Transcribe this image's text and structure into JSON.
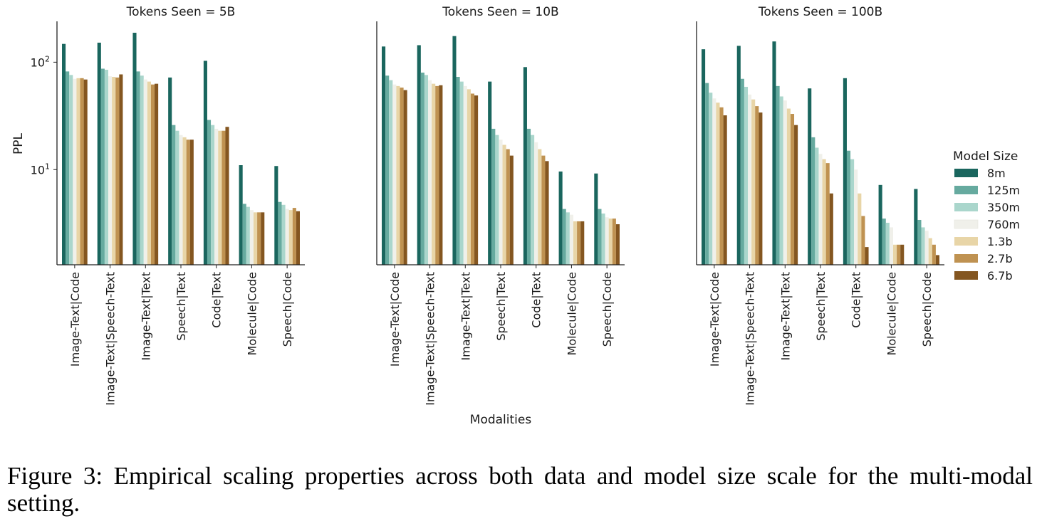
{
  "chart_data": {
    "type": "bar",
    "y_scale": "log",
    "ylim": [
      1.3,
      240
    ],
    "ylabel": "PPL",
    "xlabel": "Modalities",
    "yticks": [
      {
        "value": 10,
        "base": "10",
        "exp": "1"
      },
      {
        "value": 100,
        "base": "10",
        "exp": "2"
      }
    ],
    "legend": {
      "title": "Model Size",
      "placement": "right"
    },
    "categories": [
      "Image-Text|Code",
      "Image-Text|Speech-Text",
      "Image-Text|Text",
      "Speech|Text",
      "Code|Text",
      "Molecule|Code",
      "Speech|Code"
    ],
    "series_names": [
      "8m",
      "125m",
      "350m",
      "760m",
      "1.3b",
      "2.7b",
      "6.7b"
    ],
    "colors": [
      "#1a665e",
      "#66aa9f",
      "#aad6cc",
      "#f0f0ea",
      "#e8d5a7",
      "#bf9251",
      "#845620"
    ],
    "panels": [
      {
        "title": "Tokens Seen = 5B",
        "values": [
          [
            148,
            82,
            76,
            70,
            71,
            71,
            69
          ],
          [
            152,
            87,
            85,
            74,
            73,
            72,
            77
          ],
          [
            188,
            82,
            75,
            69,
            66,
            62,
            63
          ],
          [
            72,
            26,
            23,
            21,
            20,
            19,
            19
          ],
          [
            103,
            29,
            26,
            24,
            23,
            23,
            25
          ],
          [
            11,
            4.8,
            4.5,
            4.2,
            4.0,
            4.0,
            4.0
          ],
          [
            10.8,
            5.0,
            4.7,
            4.3,
            4.2,
            4.4,
            4.1
          ]
        ]
      },
      {
        "title": "Tokens Seen = 10B",
        "values": [
          [
            140,
            75,
            68,
            62,
            60,
            58,
            55
          ],
          [
            144,
            80,
            76,
            68,
            63,
            60,
            61
          ],
          [
            175,
            73,
            66,
            60,
            56,
            51,
            49
          ],
          [
            66,
            24,
            21,
            19,
            17,
            15.5,
            13.5
          ],
          [
            90,
            24,
            21,
            18,
            15.5,
            13.5,
            12
          ],
          [
            9.6,
            4.3,
            4.0,
            3.8,
            3.3,
            3.3,
            3.3
          ],
          [
            9.2,
            4.3,
            3.9,
            3.6,
            3.5,
            3.5,
            3.1
          ]
        ]
      },
      {
        "title": "Tokens Seen = 100B",
        "values": [
          [
            132,
            64,
            52,
            46,
            42,
            38,
            32
          ],
          [
            142,
            70,
            59,
            50,
            45,
            39,
            34
          ],
          [
            156,
            60,
            48,
            44,
            37,
            33,
            26
          ],
          [
            57,
            20,
            16,
            14,
            12.5,
            11.5,
            6
          ],
          [
            71,
            15,
            12.5,
            10,
            6,
            3.7,
            1.9
          ],
          [
            7.2,
            3.5,
            3.2,
            2.9,
            2.0,
            2.0,
            2.0
          ],
          [
            6.6,
            3.4,
            2.9,
            2.7,
            2.3,
            2.0,
            1.6
          ]
        ]
      }
    ]
  },
  "caption": "Figure 3: Empirical scaling properties across both data and model size scale for the multi-modal setting."
}
